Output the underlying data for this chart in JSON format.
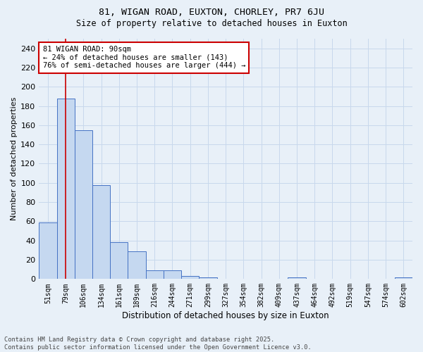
{
  "title1": "81, WIGAN ROAD, EUXTON, CHORLEY, PR7 6JU",
  "title2": "Size of property relative to detached houses in Euxton",
  "xlabel": "Distribution of detached houses by size in Euxton",
  "ylabel": "Number of detached properties",
  "bar_labels": [
    "51sqm",
    "79sqm",
    "106sqm",
    "134sqm",
    "161sqm",
    "189sqm",
    "216sqm",
    "244sqm",
    "271sqm",
    "299sqm",
    "327sqm",
    "354sqm",
    "382sqm",
    "409sqm",
    "437sqm",
    "464sqm",
    "492sqm",
    "519sqm",
    "547sqm",
    "574sqm",
    "602sqm"
  ],
  "bar_values": [
    59,
    188,
    155,
    98,
    38,
    29,
    9,
    9,
    3,
    2,
    0,
    0,
    0,
    0,
    2,
    0,
    0,
    0,
    0,
    0,
    2
  ],
  "bar_color": "#c5d8f0",
  "bar_edge_color": "#4472c4",
  "grid_color": "#c8d8ec",
  "background_color": "#e8f0f8",
  "vline_x": 1,
  "vline_color": "#cc0000",
  "annotation_text": "81 WIGAN ROAD: 90sqm\n← 24% of detached houses are smaller (143)\n76% of semi-detached houses are larger (444) →",
  "annotation_box_color": "#ffffff",
  "annotation_box_edge": "#cc0000",
  "ylim": [
    0,
    250
  ],
  "yticks": [
    0,
    20,
    40,
    60,
    80,
    100,
    120,
    140,
    160,
    180,
    200,
    220,
    240
  ],
  "footer1": "Contains HM Land Registry data © Crown copyright and database right 2025.",
  "footer2": "Contains public sector information licensed under the Open Government Licence v3.0."
}
